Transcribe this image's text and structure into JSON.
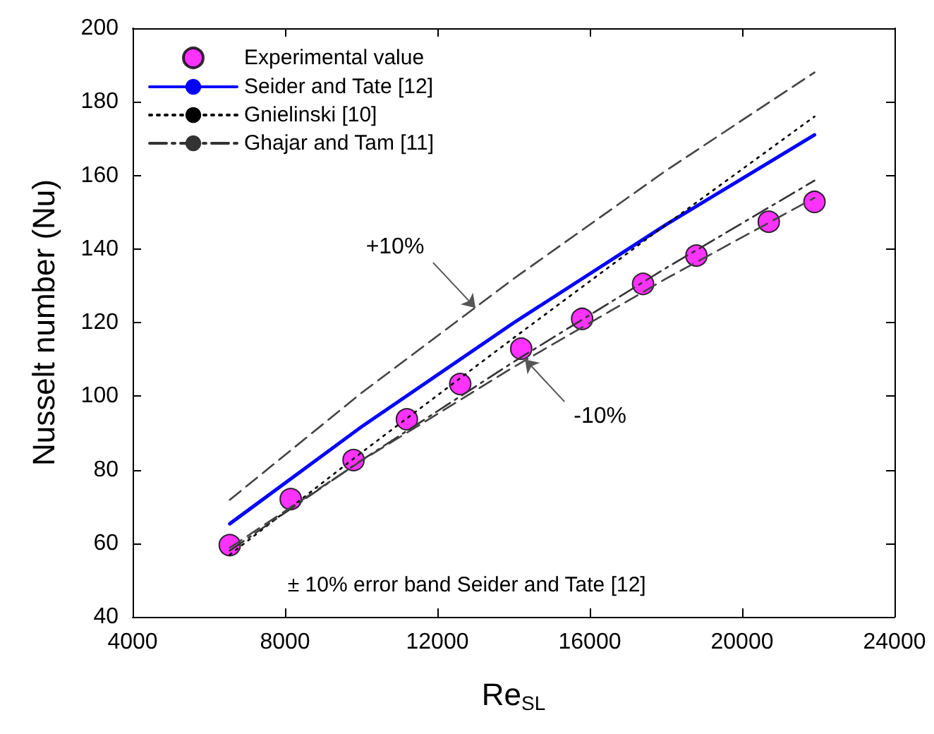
{
  "chart_data": {
    "type": "line",
    "xlabel": "Re$_{SL}$",
    "ylabel": "Nusselt number (Nu)",
    "xlim": [
      4000,
      24000
    ],
    "xticks": [
      4000,
      8000,
      12000,
      16000,
      20000,
      24000
    ],
    "ylim": [
      40,
      200
    ],
    "yticks": [
      40,
      60,
      80,
      100,
      120,
      140,
      160,
      180,
      200
    ],
    "grid": false,
    "legend": "top left",
    "series": [
      {
        "name": "Experimental value",
        "type": "scatter",
        "marker": "circle",
        "color": "#ff00ff",
        "x": [
          6550,
          8150,
          9800,
          11200,
          12600,
          14200,
          15800,
          17400,
          18800,
          20700,
          21900
        ],
        "values": [
          59.5,
          72,
          82.6,
          93.7,
          103.3,
          112.9,
          121,
          130.5,
          138.2,
          147.4,
          152.8
        ]
      },
      {
        "name": "Seider and Tate [12]",
        "color": "#0000ff",
        "line_style": "solid",
        "marker": "none",
        "x": [
          6550,
          10000,
          14000,
          18000,
          21900
        ],
        "values": [
          65.3,
          91.6,
          119.9,
          146.6,
          171
        ]
      },
      {
        "name": "Gnielinski [10]",
        "color": "#000000",
        "line_style": "dotted",
        "marker": "none",
        "x": [
          6550,
          10000,
          14000,
          18000,
          21900
        ],
        "values": [
          56.9,
          84.6,
          115.8,
          146.6,
          176
        ]
      },
      {
        "name": "Ghajar and Tam [11]",
        "color": "#333333",
        "line_style": "dashdot",
        "marker": "none",
        "x": [
          6550,
          10000,
          14000,
          18000,
          21900
        ],
        "values": [
          58,
          82.5,
          109.3,
          134.8,
          158.6
        ]
      },
      {
        "color": "#444444",
        "line_style": "dashed",
        "marker": "none",
        "x": [
          6550,
          10000,
          14000,
          18000,
          21900
        ],
        "values": [
          71.8,
          100.8,
          131.9,
          161.3,
          188
        ]
      },
      {
        "color": "#444444",
        "line_style": "dashed",
        "marker": "none",
        "x": [
          6550,
          10000,
          14000,
          18000,
          21900
        ],
        "values": [
          58.8,
          82.4,
          107.9,
          131.9,
          153.9
        ]
      }
    ],
    "annotations": [
      {
        "text": "+10%",
        "x": 13000,
        "y": 124
      },
      {
        "text": "-10%",
        "x": 14300,
        "y": 110
      },
      "± 10% error band Seider and Tate [12]"
    ]
  }
}
